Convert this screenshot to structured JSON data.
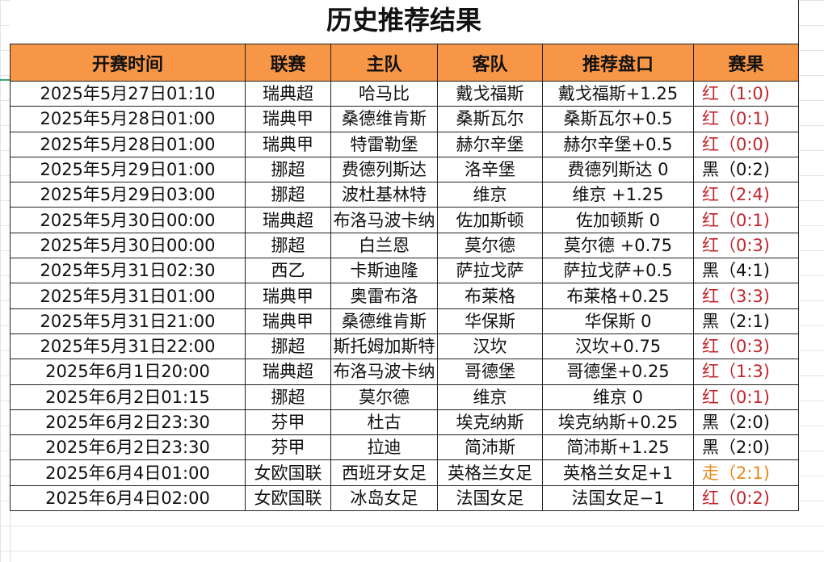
{
  "title": "历史推荐结果",
  "colors": {
    "header_bg": "#f79646",
    "red": "#c0272d",
    "black": "#111111",
    "draw": "#e8891c"
  },
  "columns": [
    "开赛时间",
    "联赛",
    "主队",
    "客队",
    "推荐盘口",
    "赛果"
  ],
  "rows": [
    {
      "time": "2025年5月27日01:10",
      "league": "瑞典超",
      "home": "哈马比",
      "away": "戴戈福斯",
      "pick": "戴戈福斯+1.25",
      "result": "红（1:0)",
      "status": "red"
    },
    {
      "time": "2025年5月28日01:00",
      "league": "瑞典甲",
      "home": "桑德维肯斯",
      "away": "桑斯瓦尔",
      "pick": "桑斯瓦尔+0.5",
      "result": "红（0:1)",
      "status": "red"
    },
    {
      "time": "2025年5月28日01:00",
      "league": "瑞典甲",
      "home": "特雷勒堡",
      "away": "赫尔辛堡",
      "pick": "赫尔辛堡+0.5",
      "result": "红（0:0)",
      "status": "red"
    },
    {
      "time": "2025年5月29日01:00",
      "league": "挪超",
      "home": "费德列斯达",
      "away": "洛辛堡",
      "pick": "费德列斯达 0",
      "result": "黑（0:2)",
      "status": "black"
    },
    {
      "time": "2025年5月29日03:00",
      "league": "挪超",
      "home": "波杜基林特",
      "away": "维京",
      "pick": "维京 +1.25",
      "result": "红（2:4)",
      "status": "red"
    },
    {
      "time": "2025年5月30日00:00",
      "league": "瑞典超",
      "home": "布洛马波卡纳",
      "away": "佐加斯顿",
      "pick": "佐加顿斯 0",
      "result": "红（0:1)",
      "status": "red"
    },
    {
      "time": "2025年5月30日00:00",
      "league": "挪超",
      "home": "白兰恩",
      "away": "莫尔德",
      "pick": "莫尔德 +0.75",
      "result": "红（0:3)",
      "status": "red"
    },
    {
      "time": "2025年5月31日02:30",
      "league": "西乙",
      "home": "卡斯迪隆",
      "away": "萨拉戈萨",
      "pick": "萨拉戈萨+0.5",
      "result": "黑（4:1)",
      "status": "black"
    },
    {
      "time": "2025年5月31日01:00",
      "league": "瑞典甲",
      "home": "奥雷布洛",
      "away": "布莱格",
      "pick": "布莱格+0.25",
      "result": "红（3:3)",
      "status": "red"
    },
    {
      "time": "2025年5月31日21:00",
      "league": "瑞典甲",
      "home": "桑德维肯斯",
      "away": "华保斯",
      "pick": "华保斯 0",
      "result": "黑（2:1)",
      "status": "black"
    },
    {
      "time": "2025年5月31日22:00",
      "league": "挪超",
      "home": "斯托姆加斯特",
      "away": "汉坎",
      "pick": "汉坎+0.75",
      "result": "红（0:3)",
      "status": "red"
    },
    {
      "time": "2025年6月1日20:00",
      "league": "瑞典超",
      "home": "布洛马波卡纳",
      "away": "哥德堡",
      "pick": "哥德堡+0.25",
      "result": "红（1:3)",
      "status": "red"
    },
    {
      "time": "2025年6月2日01:15",
      "league": "挪超",
      "home": "莫尔德",
      "away": "维京",
      "pick": "维京 0",
      "result": "红（0:1)",
      "status": "red"
    },
    {
      "time": "2025年6月2日23:30",
      "league": "芬甲",
      "home": "杜古",
      "away": "埃克纳斯",
      "pick": "埃克纳斯+0.25",
      "result": "黑（2:0)",
      "status": "black"
    },
    {
      "time": "2025年6月2日23:30",
      "league": "芬甲",
      "home": "拉迪",
      "away": "简沛斯",
      "pick": "简沛斯+1.25",
      "result": "黑（2:0)",
      "status": "black"
    },
    {
      "time": "2025年6月4日01:00",
      "league": "女欧国联",
      "home": "西班牙女足",
      "away": "英格兰女足",
      "pick": "英格兰女足+1",
      "result": "走（2:1)",
      "status": "draw"
    },
    {
      "time": "2025年6月4日02:00",
      "league": "女欧国联",
      "home": "冰岛女足",
      "away": "法国女足",
      "pick": "法国女足−1",
      "result": "红（0:2)",
      "status": "red"
    }
  ]
}
